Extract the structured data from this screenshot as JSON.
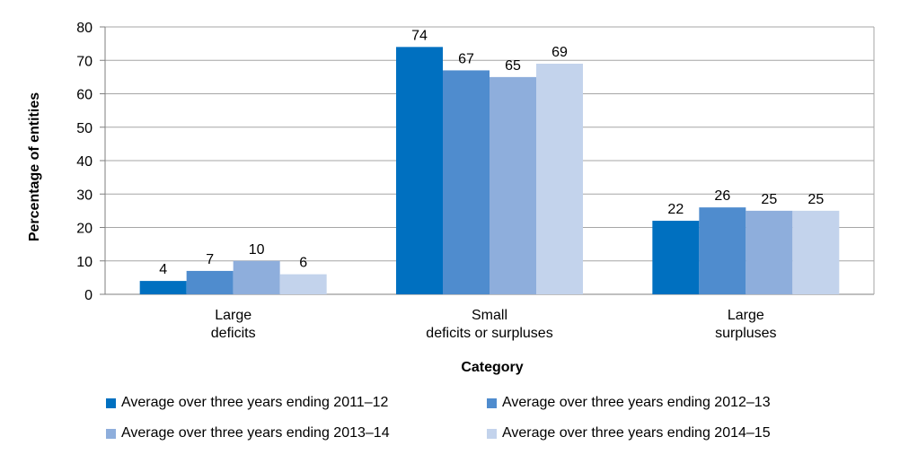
{
  "chart_data": {
    "type": "bar",
    "categories": [
      [
        "Large",
        "deficits"
      ],
      [
        "Small",
        "deficits or surpluses"
      ],
      [
        "Large",
        "surpluses"
      ]
    ],
    "series": [
      {
        "name": "Average over three years ending 2011–12",
        "color": "#0070C0",
        "values": [
          4,
          74,
          22
        ]
      },
      {
        "name": "Average over three years ending 2012–13",
        "color": "#4F8CCE",
        "values": [
          7,
          67,
          26
        ]
      },
      {
        "name": "Average over three years ending 2013–14",
        "color": "#8EAEDC",
        "values": [
          10,
          65,
          25
        ]
      },
      {
        "name": "Average over three years ending 2014–15",
        "color": "#C3D3EC",
        "values": [
          6,
          69,
          25
        ]
      }
    ],
    "xlabel": "Category",
    "ylabel": "Percentage of entities",
    "ylim": [
      0,
      80
    ],
    "yticks": [
      0,
      10,
      20,
      30,
      40,
      50,
      60,
      70,
      80
    ],
    "grid": true,
    "legend_position": "bottom"
  }
}
